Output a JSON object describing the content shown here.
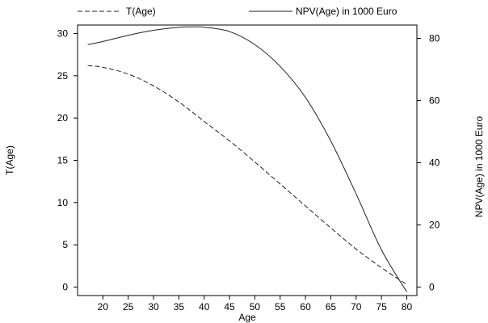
{
  "chart_data": {
    "type": "line",
    "xlabel": "Age",
    "x_ticks": [
      20,
      25,
      30,
      35,
      40,
      45,
      50,
      55,
      60,
      65,
      70,
      75,
      80
    ],
    "xlim": [
      15,
      82
    ],
    "y_left": {
      "label": "T(Age)",
      "ticks": [
        0,
        5,
        10,
        15,
        20,
        25,
        30
      ],
      "ylim": [
        -1,
        31
      ]
    },
    "y_right": {
      "label": "NPV(Age) in 1000 Euro",
      "ticks": [
        0,
        20,
        40,
        60,
        80
      ],
      "ylim": [
        -2.7,
        84.3
      ]
    },
    "series": [
      {
        "name": "T(Age)",
        "axis": "left",
        "style": "dashed",
        "x": [
          17,
          20,
          25,
          30,
          35,
          40,
          45,
          50,
          55,
          60,
          65,
          70,
          75,
          80
        ],
        "y": [
          26.2,
          26.0,
          25.2,
          23.8,
          21.9,
          19.6,
          17.3,
          14.8,
          12.2,
          9.6,
          7.0,
          4.5,
          2.3,
          0.3
        ]
      },
      {
        "name": "NPV(Age) in 1000 Euro",
        "axis": "right",
        "style": "solid",
        "x": [
          17,
          20,
          25,
          30,
          35,
          38,
          40,
          45,
          50,
          55,
          60,
          65,
          70,
          75,
          80
        ],
        "y": [
          78,
          79,
          81,
          82.6,
          83.6,
          83.7,
          83.6,
          82.2,
          78,
          71,
          61,
          47,
          30,
          12,
          -1.5
        ]
      }
    ],
    "legend": {
      "placement": "top",
      "entries": [
        "T(Age)",
        "NPV(Age) in 1000 Euro"
      ]
    },
    "grid": false
  }
}
